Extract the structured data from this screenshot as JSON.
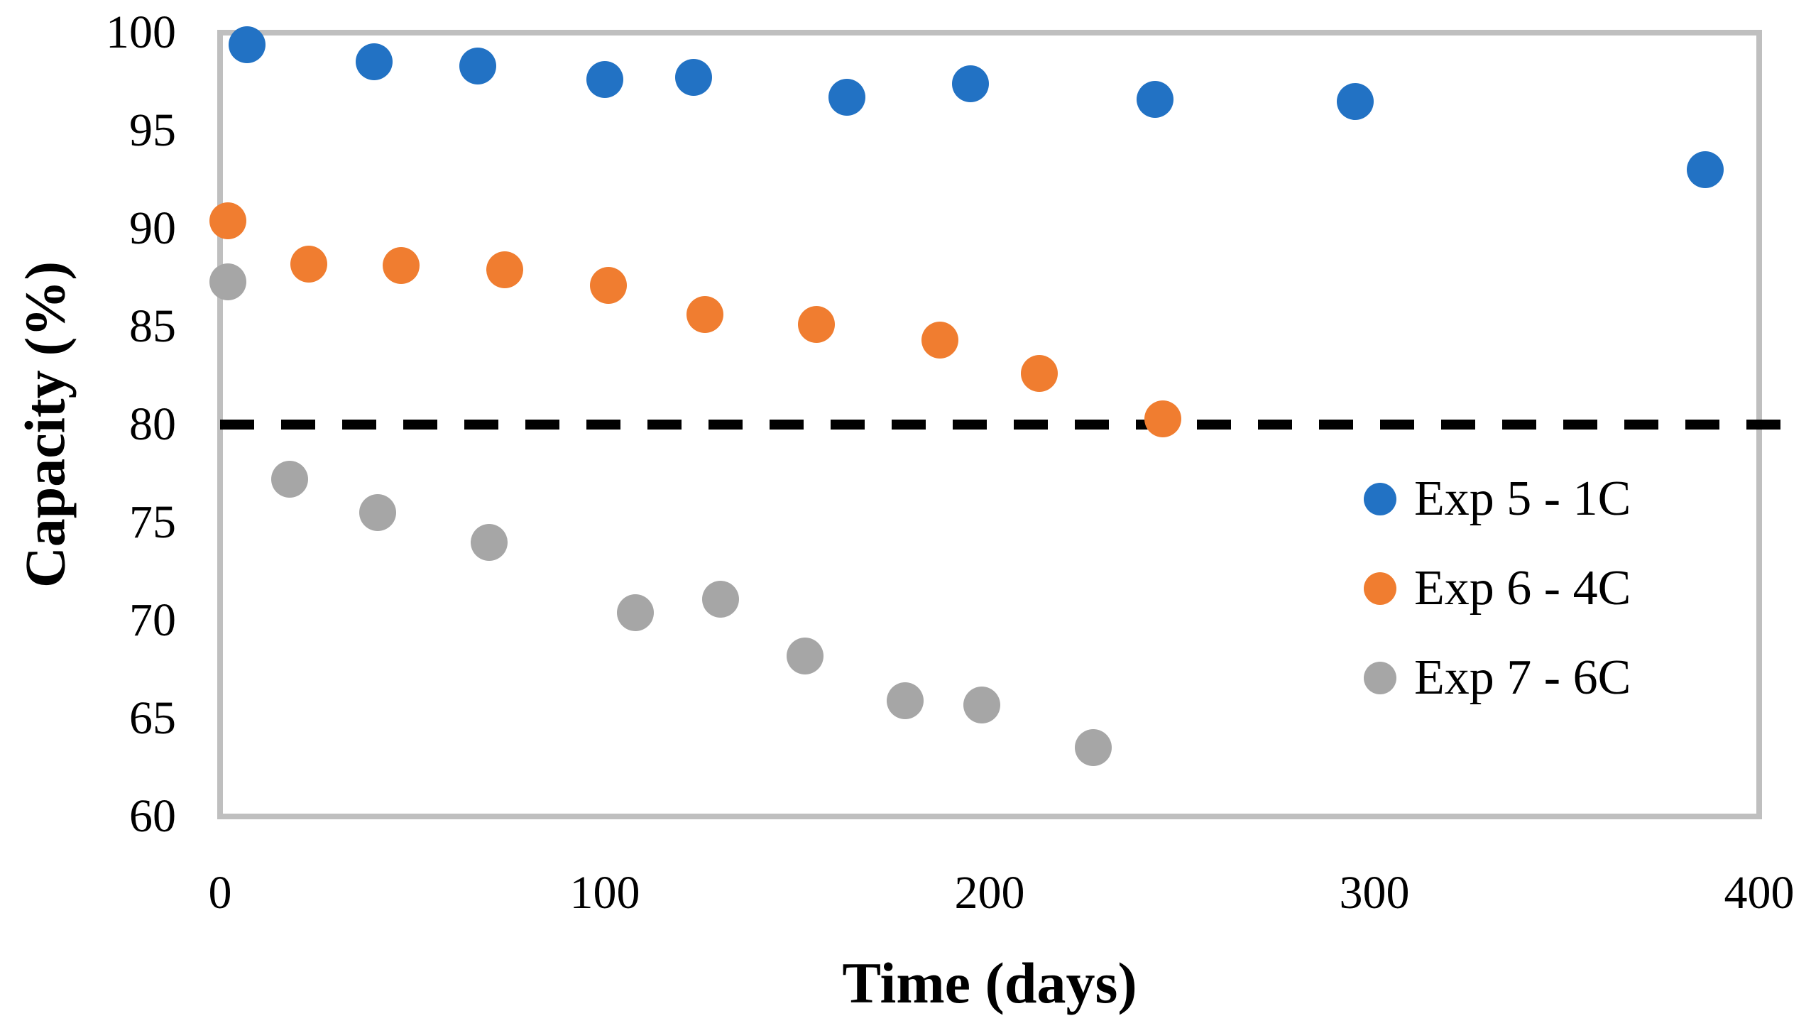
{
  "chart_data": {
    "type": "scatter",
    "title": "",
    "xlabel": "Time (days)",
    "ylabel": "Capacity (%)",
    "xlim": [
      0,
      400
    ],
    "ylim": [
      60,
      100
    ],
    "x_ticks": [
      0,
      100,
      200,
      300,
      400
    ],
    "y_ticks": [
      100,
      95,
      90,
      85,
      80,
      75,
      70,
      65,
      60
    ],
    "grid": false,
    "plot_border_color": "#BFBFBF",
    "legend_position": "inside-right-middle",
    "threshold_line": {
      "y": 80,
      "style": "dashed",
      "color": "#000000"
    },
    "series": [
      {
        "key": "exp5",
        "name": "Exp 5 - 1C",
        "color": "#2272C4",
        "points": [
          [
            7,
            99.4
          ],
          [
            40,
            98.5
          ],
          [
            67,
            98.3
          ],
          [
            100,
            97.6
          ],
          [
            123,
            97.7
          ],
          [
            163,
            96.7
          ],
          [
            195,
            97.4
          ],
          [
            243,
            96.6
          ],
          [
            295,
            96.5
          ],
          [
            386,
            93.0
          ]
        ]
      },
      {
        "key": "exp6",
        "name": "Exp 6 - 4C",
        "color": "#F07D30",
        "points": [
          [
            2,
            90.4
          ],
          [
            23,
            88.2
          ],
          [
            47,
            88.1
          ],
          [
            74,
            87.9
          ],
          [
            101,
            87.1
          ],
          [
            126,
            85.6
          ],
          [
            155,
            85.1
          ],
          [
            187,
            84.3
          ],
          [
            213,
            82.6
          ],
          [
            245,
            80.3
          ]
        ]
      },
      {
        "key": "exp7",
        "name": "Exp 7 - 6C",
        "color": "#A6A6A6",
        "points": [
          [
            2,
            87.3
          ],
          [
            18,
            77.2
          ],
          [
            41,
            75.5
          ],
          [
            70,
            74.0
          ],
          [
            108,
            70.4
          ],
          [
            130,
            71.1
          ],
          [
            152,
            68.2
          ],
          [
            178,
            65.9
          ],
          [
            198,
            65.7
          ],
          [
            227,
            63.5
          ]
        ]
      }
    ]
  }
}
